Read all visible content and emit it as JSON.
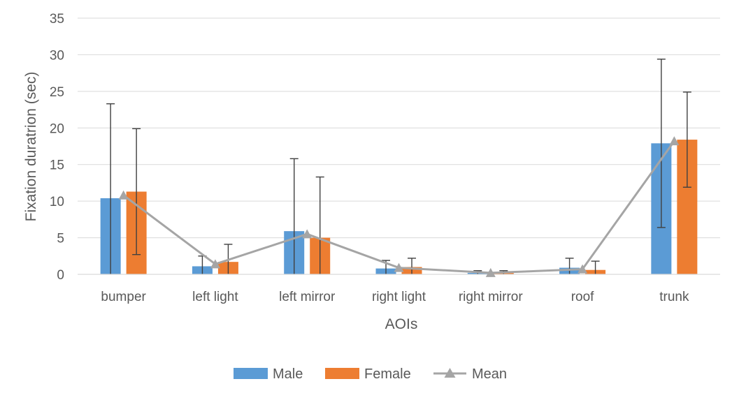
{
  "chart_data": {
    "type": "bar",
    "categories": [
      "bumper",
      "left light",
      "left mirror",
      "right light",
      "right mirror",
      "roof",
      "trunk"
    ],
    "series": [
      {
        "name": "Male",
        "type": "bar",
        "color": "#5B9BD5",
        "values": [
          10.4,
          1.1,
          5.9,
          0.8,
          0.2,
          0.9,
          17.9
        ],
        "error": [
          12.9,
          1.4,
          9.9,
          1.1,
          0.3,
          1.3,
          11.5
        ]
      },
      {
        "name": "Female",
        "type": "bar",
        "color": "#ED7D31",
        "values": [
          11.3,
          1.7,
          5.0,
          1.0,
          0.2,
          0.6,
          18.4
        ],
        "error": [
          8.6,
          2.4,
          8.3,
          1.2,
          0.3,
          1.2,
          6.5
        ]
      },
      {
        "name": "Mean",
        "type": "line",
        "color": "#A5A5A5",
        "marker": "triangle",
        "values": [
          10.8,
          1.4,
          5.5,
          0.9,
          0.2,
          0.7,
          18.2
        ]
      }
    ],
    "xlabel": "AOIs",
    "ylabel": "Fixation duratrion (sec)",
    "ylim": [
      0,
      35
    ],
    "yticks": [
      0,
      5,
      10,
      15,
      20,
      25,
      30,
      35
    ],
    "grid": true,
    "legend": "bottom"
  }
}
